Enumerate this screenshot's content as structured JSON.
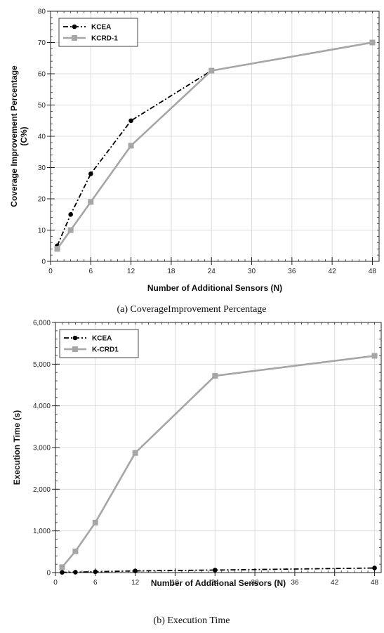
{
  "chart_data": [
    {
      "type": "line",
      "caption": "(a)  CoverageImprovement Percentage",
      "xlabel": "Number of Additional Sensors (N)",
      "ylabel_line1": "Coverage Improvement Percentage",
      "ylabel_line2": "(C%)",
      "xlim": [
        0,
        49
      ],
      "ylim": [
        0,
        80
      ],
      "x_ticks": [
        0,
        6,
        12,
        18,
        24,
        30,
        36,
        42,
        48
      ],
      "x_tick_labels": [
        "0",
        "6",
        "12",
        "18",
        "24",
        "30",
        "36",
        "42",
        "48"
      ],
      "y_ticks": [
        0,
        10,
        20,
        30,
        40,
        50,
        60,
        70,
        80
      ],
      "y_tick_labels": [
        "0",
        "10",
        "20",
        "30",
        "40",
        "50",
        "60",
        "70",
        "80"
      ],
      "grid": true,
      "legend_position": "top-left",
      "series": [
        {
          "name": "KCEA",
          "color": "#000000",
          "marker": "circle",
          "dash": "dashdot",
          "points": [
            [
              1,
              5
            ],
            [
              3,
              15
            ],
            [
              6,
              28
            ],
            [
              12,
              45
            ],
            [
              24,
              61
            ],
            [
              48,
              70
            ]
          ]
        },
        {
          "name": "KCRD-1",
          "color": "#a6a6a6",
          "marker": "square",
          "dash": "solid",
          "points": [
            [
              1,
              4
            ],
            [
              3,
              10
            ],
            [
              6,
              19
            ],
            [
              12,
              37
            ],
            [
              24,
              61
            ],
            [
              48,
              70
            ]
          ]
        }
      ]
    },
    {
      "type": "line",
      "caption": "(b)  Execution Time",
      "xlabel": "Number of Additional Sensors (N)",
      "ylabel_line1": "Execution Time (s)",
      "ylabel_line2": "",
      "xlim": [
        0,
        49
      ],
      "ylim": [
        0,
        6000
      ],
      "x_ticks": [
        0,
        6,
        12,
        18,
        24,
        30,
        36,
        42,
        48
      ],
      "x_tick_labels": [
        "0",
        "6",
        "12",
        "18",
        "24",
        "30",
        "36",
        "42",
        "48"
      ],
      "y_ticks": [
        0,
        1000,
        2000,
        3000,
        4000,
        5000,
        6000
      ],
      "y_tick_labels": [
        "0",
        "1,000",
        "2,000",
        "3,000",
        "4,000",
        "5,000",
        "6,000"
      ],
      "grid": true,
      "legend_position": "top-left",
      "series": [
        {
          "name": "KCEA",
          "color": "#000000",
          "marker": "circle",
          "dash": "dashdot",
          "points": [
            [
              1,
              5
            ],
            [
              3,
              10
            ],
            [
              6,
              20
            ],
            [
              12,
              40
            ],
            [
              24,
              60
            ],
            [
              48,
              110
            ]
          ]
        },
        {
          "name": "K-CRD1",
          "color": "#a6a6a6",
          "marker": "square",
          "dash": "solid",
          "points": [
            [
              1,
              130
            ],
            [
              3,
              510
            ],
            [
              6,
              1200
            ],
            [
              12,
              2870
            ],
            [
              24,
              4720
            ],
            [
              48,
              5200
            ]
          ]
        }
      ]
    }
  ]
}
